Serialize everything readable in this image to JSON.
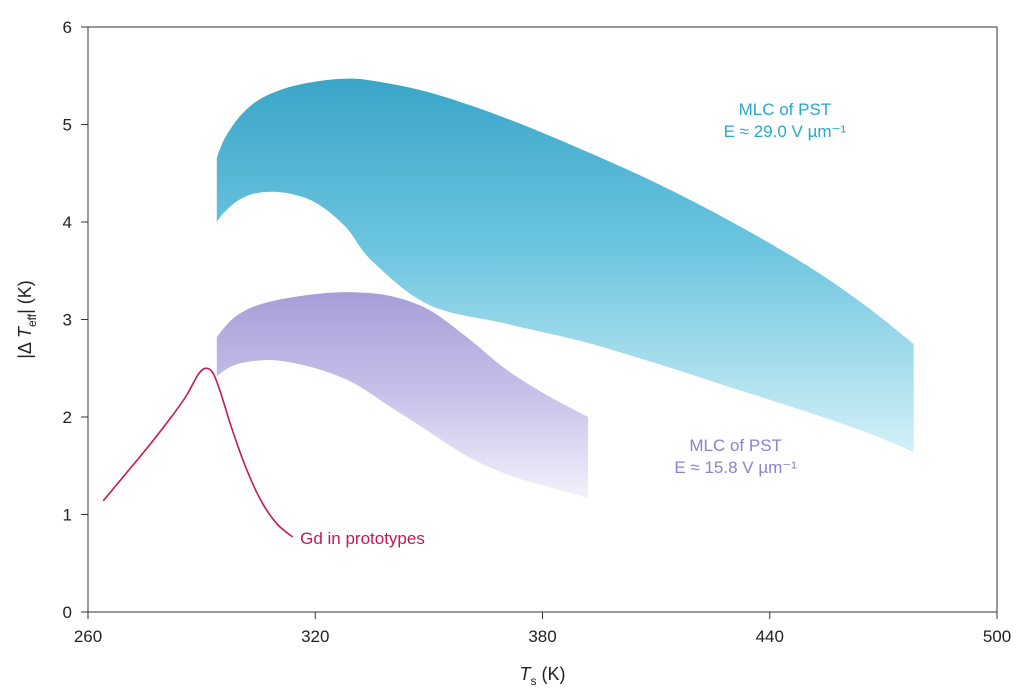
{
  "chart_data": {
    "type": "area",
    "title": "",
    "xlabel": {
      "main": "T",
      "sub": "s",
      "unit": " (K)"
    },
    "ylabel": {
      "pre": "|Δ ",
      "main": "T",
      "sub": "eff",
      "post": "| (K)"
    },
    "xlim": [
      260,
      500
    ],
    "ylim": [
      0,
      6
    ],
    "xticks": [
      260,
      320,
      380,
      440,
      500
    ],
    "yticks": [
      0,
      1,
      2,
      3,
      4,
      5,
      6
    ],
    "grid": false,
    "legend": "none",
    "series": [
      {
        "name": "MLC of PST E ≈ 29.0 V µm⁻¹",
        "kind": "band",
        "color": "#2d9fc4",
        "x": [
          294,
          296,
          300,
          305,
          312,
          320,
          328,
          335,
          350,
          370,
          390,
          410,
          430,
          450,
          465,
          478
        ],
        "upper": [
          4.66,
          4.85,
          5.08,
          5.25,
          5.37,
          5.44,
          5.47,
          5.45,
          5.33,
          5.07,
          4.75,
          4.4,
          4.0,
          3.55,
          3.15,
          2.75
        ],
        "lower": [
          4.0,
          4.1,
          4.23,
          4.3,
          4.3,
          4.2,
          3.95,
          3.6,
          3.15,
          2.96,
          2.78,
          2.55,
          2.3,
          2.05,
          1.85,
          1.64
        ]
      },
      {
        "name": "MLC of PST E ≈ 15.8 V µm⁻¹",
        "kind": "band",
        "color": "#9e93d6",
        "x": [
          294,
          298,
          303,
          310,
          320,
          330,
          340,
          350,
          360,
          370,
          380,
          392
        ],
        "upper": [
          2.82,
          3.0,
          3.12,
          3.2,
          3.26,
          3.28,
          3.24,
          3.1,
          2.82,
          2.5,
          2.25,
          2.0
        ],
        "lower": [
          2.42,
          2.52,
          2.57,
          2.58,
          2.5,
          2.35,
          2.1,
          1.85,
          1.6,
          1.42,
          1.3,
          1.17
        ]
      },
      {
        "name": "Gd in prototypes",
        "kind": "line",
        "color": "#c2185b",
        "x": [
          264,
          270,
          276,
          282,
          286,
          289,
          291,
          293,
          295,
          298,
          302,
          306,
          310,
          314
        ],
        "y": [
          1.14,
          1.42,
          1.7,
          2.0,
          2.22,
          2.43,
          2.5,
          2.45,
          2.25,
          1.88,
          1.45,
          1.12,
          0.9,
          0.77
        ]
      }
    ],
    "annotations": [
      {
        "lines": [
          "MLC of PST",
          "E ≈ 29.0 V µm⁻¹"
        ],
        "color": "#2aa7cf",
        "x": 444,
        "y": 5.1
      },
      {
        "lines": [
          "MLC of PST",
          "E ≈ 15.8 V µm⁻¹"
        ],
        "color": "#8a82cf",
        "x": 431,
        "y": 1.65
      },
      {
        "lines": [
          "Gd in prototypes"
        ],
        "color": "#c2185b",
        "x": 316,
        "y": 0.7
      }
    ]
  }
}
